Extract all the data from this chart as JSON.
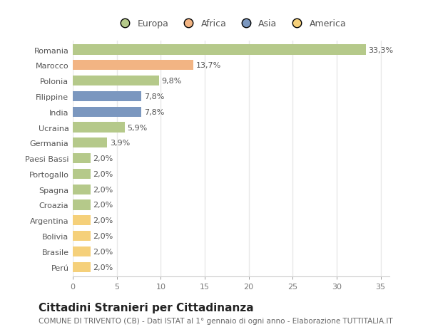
{
  "categories": [
    "Romania",
    "Marocco",
    "Polonia",
    "Filippine",
    "India",
    "Ucraina",
    "Germania",
    "Paesi Bassi",
    "Portogallo",
    "Spagna",
    "Croazia",
    "Argentina",
    "Bolivia",
    "Brasile",
    "Perú"
  ],
  "values": [
    33.3,
    13.7,
    9.8,
    7.8,
    7.8,
    5.9,
    3.9,
    2.0,
    2.0,
    2.0,
    2.0,
    2.0,
    2.0,
    2.0,
    2.0
  ],
  "labels": [
    "33,3%",
    "13,7%",
    "9,8%",
    "7,8%",
    "7,8%",
    "5,9%",
    "3,9%",
    "2,0%",
    "2,0%",
    "2,0%",
    "2,0%",
    "2,0%",
    "2,0%",
    "2,0%",
    "2,0%"
  ],
  "colors": [
    "#b5c98a",
    "#f2b483",
    "#b5c98a",
    "#7b97bf",
    "#7b97bf",
    "#b5c98a",
    "#b5c98a",
    "#b5c98a",
    "#b5c98a",
    "#b5c98a",
    "#b5c98a",
    "#f5d07a",
    "#f5d07a",
    "#f5d07a",
    "#f5d07a"
  ],
  "legend_labels": [
    "Europa",
    "Africa",
    "Asia",
    "America"
  ],
  "legend_colors": [
    "#b5c98a",
    "#f2b483",
    "#7b97bf",
    "#f5d07a"
  ],
  "title": "Cittadini Stranieri per Cittadinanza",
  "subtitle": "COMUNE DI TRIVENTO (CB) - Dati ISTAT al 1° gennaio di ogni anno - Elaborazione TUTTITALIA.IT",
  "xlim": [
    0,
    36
  ],
  "xticks": [
    0,
    5,
    10,
    15,
    20,
    25,
    30,
    35
  ],
  "chart_bg": "#ffffff",
  "fig_bg": "#ffffff",
  "grid_color": "#e8e8e8",
  "bar_height": 0.65,
  "label_fontsize": 8,
  "tick_fontsize": 8,
  "title_fontsize": 11,
  "subtitle_fontsize": 7.5
}
